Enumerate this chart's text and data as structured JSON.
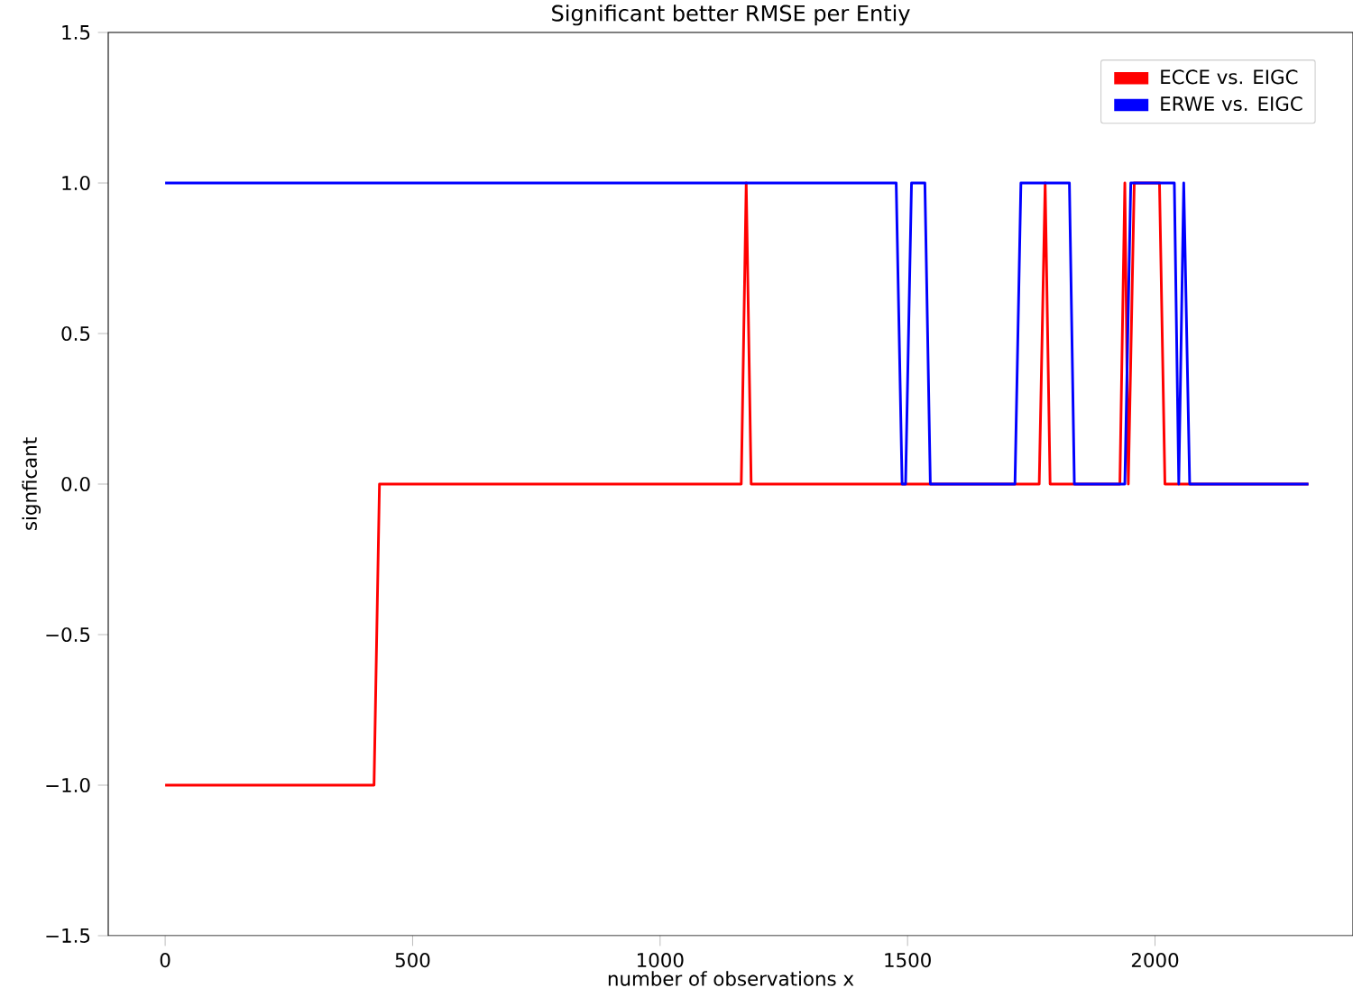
{
  "chart_data": {
    "type": "line",
    "title": "Significant better RMSE per Entiy",
    "xlabel": "number of observations x",
    "ylabel": "signficant",
    "xlim": [
      -115,
      2400
    ],
    "ylim": [
      -1.5,
      1.5
    ],
    "xticks": [
      0,
      500,
      1000,
      1500,
      2000
    ],
    "yticks": [
      {
        "value": -1.5,
        "label": "−1.5"
      },
      {
        "value": -1.0,
        "label": "−1.0"
      },
      {
        "value": -0.5,
        "label": "−0.5"
      },
      {
        "value": 0.0,
        "label": "0.0"
      },
      {
        "value": 0.5,
        "label": "0.5"
      },
      {
        "value": 1.0,
        "label": "1.0"
      },
      {
        "value": 1.5,
        "label": "1.5"
      }
    ],
    "legend": "top right",
    "grid": false,
    "series": [
      {
        "name": "ECCE vs. EIGC",
        "color": "#ff0000",
        "x": [
          0,
          422,
          433,
          1164,
          1174,
          1184,
          1766,
          1778,
          1788,
          1929,
          1939,
          1946,
          1958,
          2009,
          2020,
          2310
        ],
        "values": [
          -1,
          -1,
          0,
          0,
          1,
          0,
          0,
          1,
          0,
          0,
          1,
          0,
          1,
          1,
          0,
          0
        ]
      },
      {
        "name": "ERWE vs. EIGC",
        "color": "#0000ff",
        "x": [
          0,
          1477,
          1489,
          1496,
          1508,
          1535,
          1546,
          1717,
          1729,
          1827,
          1837,
          1939,
          1951,
          2039,
          2048,
          2058,
          2070,
          2310
        ],
        "values": [
          1,
          1,
          0,
          0,
          1,
          1,
          0,
          0,
          1,
          1,
          0,
          0,
          1,
          1,
          0,
          1,
          0,
          0
        ]
      }
    ]
  }
}
